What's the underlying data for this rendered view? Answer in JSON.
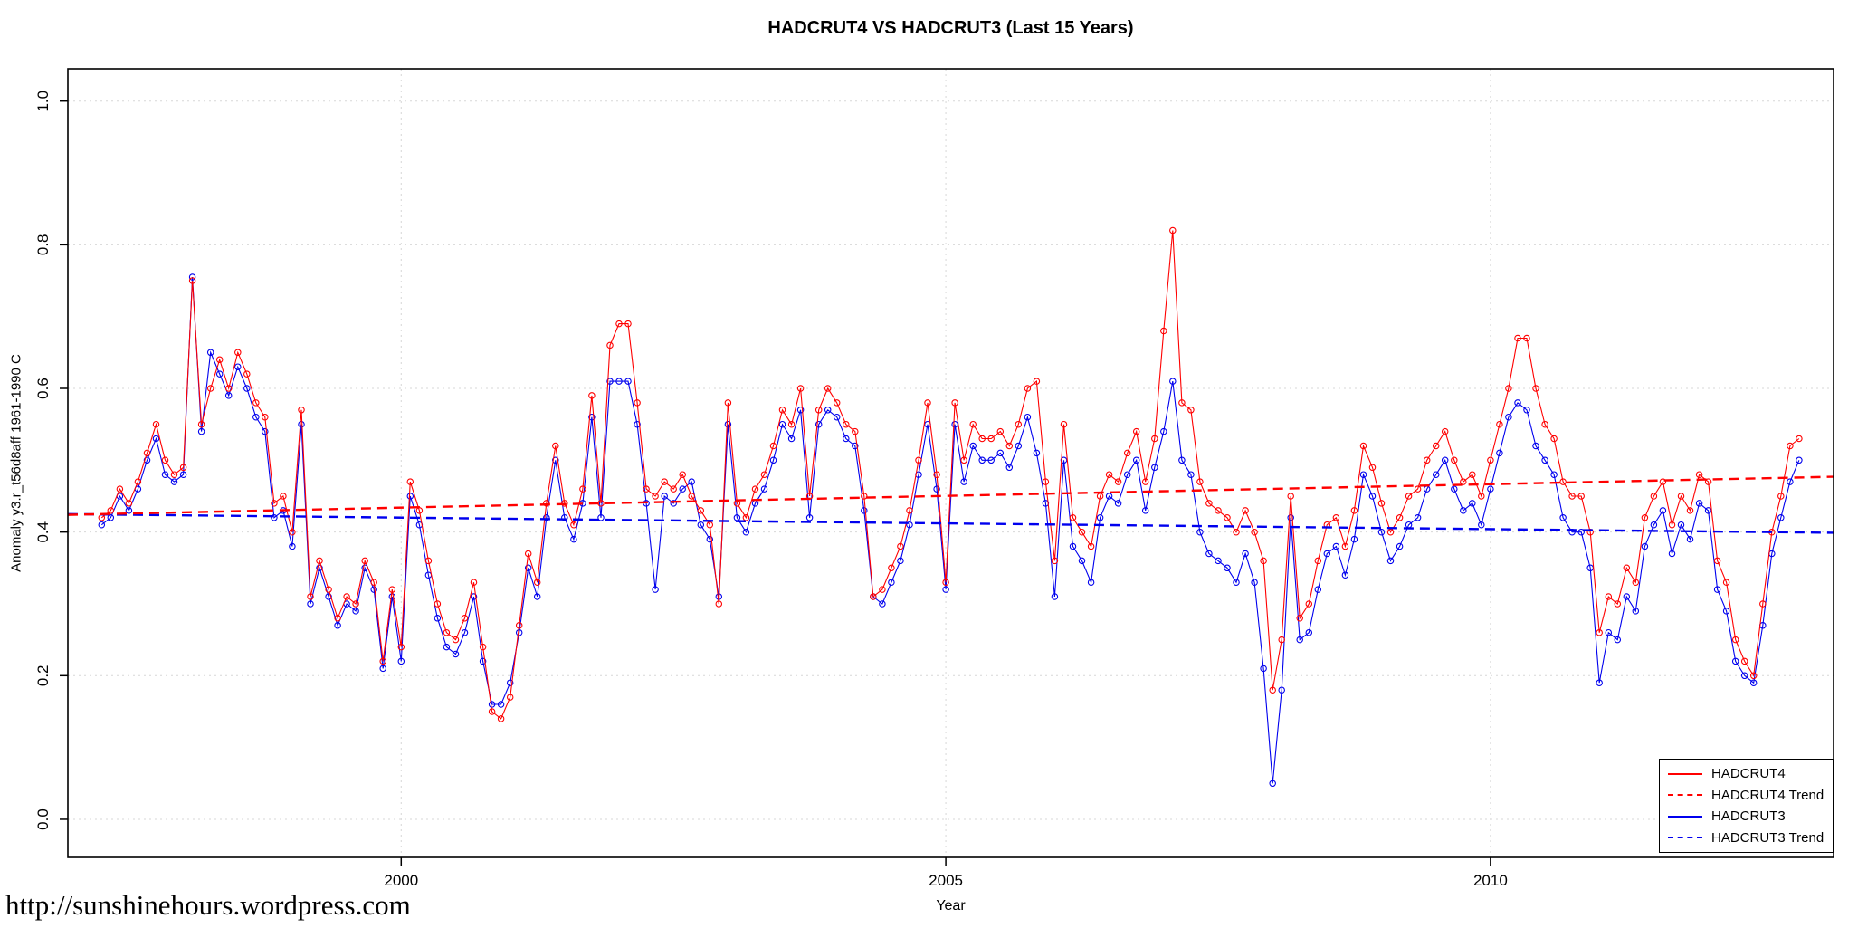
{
  "footer": {
    "url": "http://sunshinehours.wordpress.com"
  },
  "chart_data": {
    "type": "line",
    "title": "HADCRUT4 VS HADCRUT3 (Last 15 Years)",
    "xlabel": "Year",
    "ylabel": "Anomaly y3.r_t56d8aff 1961-1990 C",
    "xlim": [
      1996.94,
      2013.15
    ],
    "ylim": [
      -0.053,
      1.045
    ],
    "x_ticks": [
      2000,
      2005,
      2010
    ],
    "x_tick_labels": [
      "2000",
      "2005",
      "2010"
    ],
    "y_ticks": [
      0.0,
      0.2,
      0.4,
      0.6,
      0.8,
      1.0
    ],
    "y_tick_labels": [
      "0.0",
      "0.2",
      "0.4",
      "0.6",
      "0.8",
      "1.0"
    ],
    "grid": true,
    "marker": "open-circle",
    "colors": {
      "grid": "#d7d7d7",
      "axis": "#000000",
      "hadcrut4": "#ff0000",
      "hadcrut3": "#0000ee"
    },
    "series": [
      {
        "name": "HADCRUT3",
        "color": "#0000ee",
        "style": "solid",
        "x_start": 1997.25,
        "x_step": 0.0833333,
        "values": [
          0.41,
          0.42,
          0.45,
          0.43,
          0.46,
          0.5,
          0.53,
          0.48,
          0.47,
          0.48,
          0.755,
          0.54,
          0.65,
          0.62,
          0.59,
          0.63,
          0.6,
          0.56,
          0.54,
          0.42,
          0.43,
          0.38,
          0.55,
          0.3,
          0.35,
          0.31,
          0.27,
          0.3,
          0.29,
          0.35,
          0.32,
          0.21,
          0.31,
          0.22,
          0.45,
          0.41,
          0.34,
          0.28,
          0.24,
          0.23,
          0.26,
          0.31,
          0.22,
          0.16,
          0.16,
          0.19,
          0.26,
          0.35,
          0.31,
          0.42,
          0.5,
          0.42,
          0.39,
          0.44,
          0.56,
          0.42,
          0.61,
          0.61,
          0.61,
          0.55,
          0.44,
          0.32,
          0.45,
          0.44,
          0.46,
          0.47,
          0.41,
          0.39,
          0.31,
          0.55,
          0.42,
          0.4,
          0.44,
          0.46,
          0.5,
          0.55,
          0.53,
          0.57,
          0.42,
          0.55,
          0.57,
          0.56,
          0.53,
          0.52,
          0.43,
          0.31,
          0.3,
          0.33,
          0.36,
          0.41,
          0.48,
          0.55,
          0.46,
          0.32,
          0.55,
          0.47,
          0.52,
          0.5,
          0.5,
          0.51,
          0.49,
          0.52,
          0.56,
          0.51,
          0.44,
          0.31,
          0.5,
          0.38,
          0.36,
          0.33,
          0.42,
          0.45,
          0.44,
          0.48,
          0.5,
          0.43,
          0.49,
          0.54,
          0.61,
          0.5,
          0.48,
          0.4,
          0.37,
          0.36,
          0.35,
          0.33,
          0.37,
          0.33,
          0.21,
          0.05,
          0.18,
          0.42,
          0.25,
          0.26,
          0.32,
          0.37,
          0.38,
          0.34,
          0.39,
          0.48,
          0.45,
          0.4,
          0.36,
          0.38,
          0.41,
          0.42,
          0.46,
          0.48,
          0.5,
          0.46,
          0.43,
          0.44,
          0.41,
          0.46,
          0.51,
          0.56,
          0.58,
          0.57,
          0.52,
          0.5,
          0.48,
          0.42,
          0.4,
          0.4,
          0.35,
          0.19,
          0.26,
          0.25,
          0.31,
          0.29,
          0.38,
          0.41,
          0.43,
          0.37,
          0.41,
          0.39,
          0.44,
          0.43,
          0.32,
          0.29,
          0.22,
          0.2,
          0.19,
          0.27,
          0.37,
          0.42,
          0.47,
          0.5
        ]
      },
      {
        "name": "HADCRUT4",
        "color": "#ff0000",
        "style": "solid",
        "x_start": 1997.25,
        "x_step": 0.0833333,
        "values": [
          0.42,
          0.43,
          0.46,
          0.44,
          0.47,
          0.51,
          0.55,
          0.5,
          0.48,
          0.49,
          0.75,
          0.55,
          0.6,
          0.64,
          0.6,
          0.65,
          0.62,
          0.58,
          0.56,
          0.44,
          0.45,
          0.4,
          0.57,
          0.31,
          0.36,
          0.32,
          0.28,
          0.31,
          0.3,
          0.36,
          0.33,
          0.22,
          0.32,
          0.24,
          0.47,
          0.43,
          0.36,
          0.3,
          0.26,
          0.25,
          0.28,
          0.33,
          0.24,
          0.15,
          0.14,
          0.17,
          0.27,
          0.37,
          0.33,
          0.44,
          0.52,
          0.44,
          0.41,
          0.46,
          0.59,
          0.44,
          0.66,
          0.69,
          0.69,
          0.58,
          0.46,
          0.45,
          0.47,
          0.46,
          0.48,
          0.45,
          0.43,
          0.41,
          0.3,
          0.58,
          0.44,
          0.42,
          0.46,
          0.48,
          0.52,
          0.57,
          0.55,
          0.6,
          0.45,
          0.57,
          0.6,
          0.58,
          0.55,
          0.54,
          0.45,
          0.31,
          0.32,
          0.35,
          0.38,
          0.43,
          0.5,
          0.58,
          0.48,
          0.33,
          0.58,
          0.5,
          0.55,
          0.53,
          0.53,
          0.54,
          0.52,
          0.55,
          0.6,
          0.61,
          0.47,
          0.36,
          0.55,
          0.42,
          0.4,
          0.38,
          0.45,
          0.48,
          0.47,
          0.51,
          0.54,
          0.47,
          0.53,
          0.68,
          0.82,
          0.58,
          0.57,
          0.47,
          0.44,
          0.43,
          0.42,
          0.4,
          0.43,
          0.4,
          0.36,
          0.18,
          0.25,
          0.45,
          0.28,
          0.3,
          0.36,
          0.41,
          0.42,
          0.38,
          0.43,
          0.52,
          0.49,
          0.44,
          0.4,
          0.42,
          0.45,
          0.46,
          0.5,
          0.52,
          0.54,
          0.5,
          0.47,
          0.48,
          0.45,
          0.5,
          0.55,
          0.6,
          0.67,
          0.67,
          0.6,
          0.55,
          0.53,
          0.47,
          0.45,
          0.45,
          0.4,
          0.26,
          0.31,
          0.3,
          0.35,
          0.33,
          0.42,
          0.45,
          0.47,
          0.41,
          0.45,
          0.43,
          0.48,
          0.47,
          0.36,
          0.33,
          0.25,
          0.22,
          0.2,
          0.3,
          0.4,
          0.45,
          0.52,
          0.53
        ]
      },
      {
        "name": "HADCRUT3 Trend",
        "color": "#0000ee",
        "style": "dashed",
        "x": [
          1996.94,
          2013.15
        ],
        "y": [
          0.425,
          0.399
        ]
      },
      {
        "name": "HADCRUT4 Trend",
        "color": "#ff0000",
        "style": "dashed",
        "x": [
          1996.94,
          2013.15
        ],
        "y": [
          0.424,
          0.477
        ]
      }
    ],
    "legend": {
      "position": "bottom-right",
      "entries": [
        {
          "label": "HADCRUT4",
          "color": "#ff0000",
          "style": "solid"
        },
        {
          "label": "HADCRUT4 Trend",
          "color": "#ff0000",
          "style": "dashed"
        },
        {
          "label": "HADCRUT3",
          "color": "#0000ee",
          "style": "solid"
        },
        {
          "label": "HADCRUT3 Trend",
          "color": "#0000ee",
          "style": "dashed"
        }
      ]
    }
  }
}
